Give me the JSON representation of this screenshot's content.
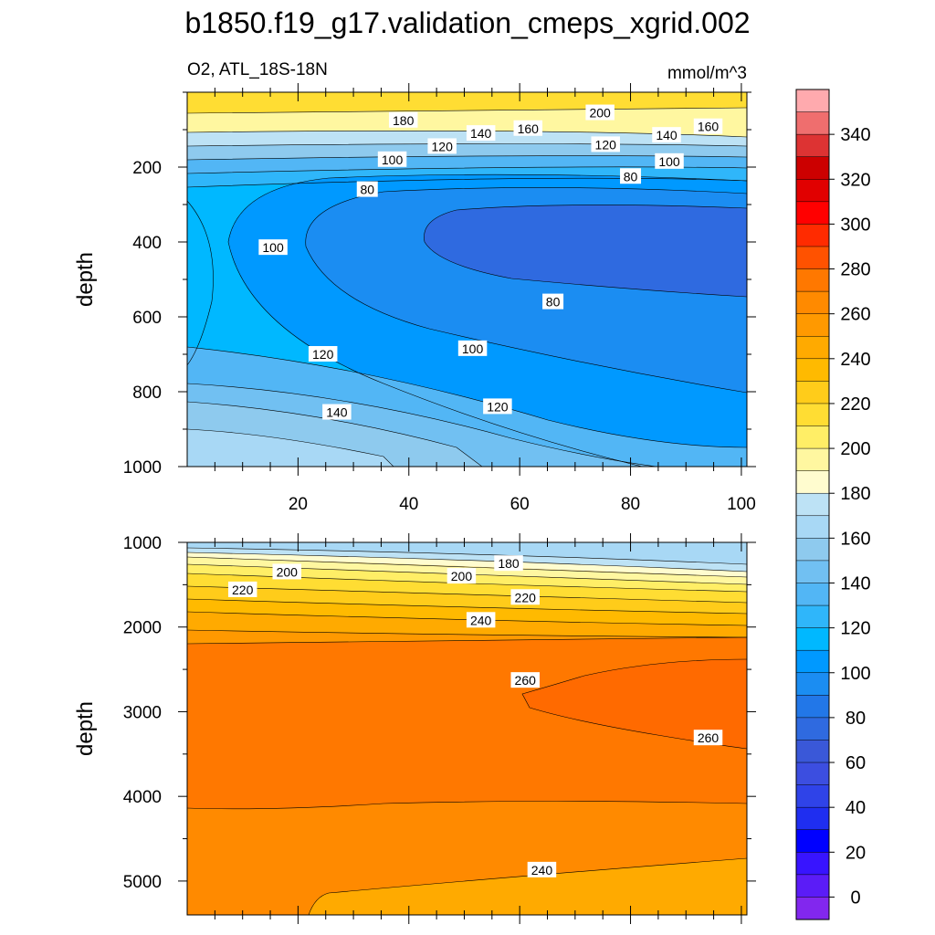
{
  "chart_data": [
    {
      "type": "contour",
      "title": "b1850.f19_g17.validation_cmeps_xgrid.002",
      "subtitle_left": "O2, ATL_18S-18N",
      "units": "mmol/m^3",
      "ylabel": "depth",
      "xlabel": "",
      "xlim": [
        0,
        101
      ],
      "ylim": [
        0,
        1000
      ],
      "x_ticks": [
        "20",
        "40",
        "60",
        "80",
        "100"
      ],
      "y_ticks": [
        "200",
        "400",
        "600",
        "800",
        "1000"
      ],
      "contour_labels": [
        {
          "text": "180",
          "x": 39,
          "y": 75
        },
        {
          "text": "160",
          "x": 61.5,
          "y": 97
        },
        {
          "text": "200",
          "x": 74.5,
          "y": 55
        },
        {
          "text": "160",
          "x": 94,
          "y": 92
        },
        {
          "text": "140",
          "x": 53,
          "y": 110
        },
        {
          "text": "140",
          "x": 86.5,
          "y": 115
        },
        {
          "text": "120",
          "x": 46,
          "y": 145
        },
        {
          "text": "120",
          "x": 75.5,
          "y": 140
        },
        {
          "text": "100",
          "x": 37,
          "y": 180
        },
        {
          "text": "100",
          "x": 87,
          "y": 185
        },
        {
          "text": "80",
          "x": 32.5,
          "y": 260
        },
        {
          "text": "80",
          "x": 80,
          "y": 225
        },
        {
          "text": "100",
          "x": 15.5,
          "y": 415
        },
        {
          "text": "80",
          "x": 66,
          "y": 560
        },
        {
          "text": "120",
          "x": 24.5,
          "y": 700
        },
        {
          "text": "100",
          "x": 51.5,
          "y": 685
        },
        {
          "text": "140",
          "x": 27,
          "y": 855
        },
        {
          "text": "120",
          "x": 56,
          "y": 840
        }
      ]
    },
    {
      "type": "contour",
      "ylabel": "depth",
      "xlim": [
        0,
        101
      ],
      "ylim": [
        1000,
        5400
      ],
      "y_ticks": [
        "1000",
        "2000",
        "3000",
        "4000",
        "5000"
      ],
      "contour_labels": [
        {
          "text": "180",
          "x": 58,
          "y": 1250
        },
        {
          "text": "200",
          "x": 18,
          "y": 1350
        },
        {
          "text": "200",
          "x": 49.5,
          "y": 1400
        },
        {
          "text": "220",
          "x": 10,
          "y": 1560
        },
        {
          "text": "220",
          "x": 61,
          "y": 1650
        },
        {
          "text": "240",
          "x": 53,
          "y": 1920
        },
        {
          "text": "260",
          "x": 61,
          "y": 2630
        },
        {
          "text": "260",
          "x": 94,
          "y": 3310
        },
        {
          "text": "240",
          "x": 64,
          "y": 4870
        }
      ]
    }
  ],
  "colorbar": {
    "labels": [
      "340",
      "320",
      "300",
      "280",
      "260",
      "240",
      "220",
      "200",
      "180",
      "160",
      "140",
      "120",
      "100",
      "80",
      "60",
      "40",
      "20",
      "0"
    ],
    "colors": [
      "#ffaaae",
      "#ef6e6e",
      "#dd3333",
      "#cc0000",
      "#e10000",
      "#ff0000",
      "#ff2b00",
      "#ff5200",
      "#ff7800",
      "#ff8a00",
      "#ff9900",
      "#ffaa00",
      "#ffba00",
      "#ffcc1a",
      "#ffdd33",
      "#ffee66",
      "#fff7a0",
      "#fffccf",
      "#bde2f5",
      "#a8d8f5",
      "#8ecaee",
      "#71c0f2",
      "#52b6f5",
      "#2fb6fa",
      "#00b8ff",
      "#0099ff",
      "#1b8df2",
      "#2277e8",
      "#2f6ae0",
      "#3a58d8",
      "#3c4ee0",
      "#2f43e8",
      "#1f2ef0",
      "#0000ff",
      "#3814ff",
      "#5b1cf7",
      "#8227ee"
    ]
  }
}
